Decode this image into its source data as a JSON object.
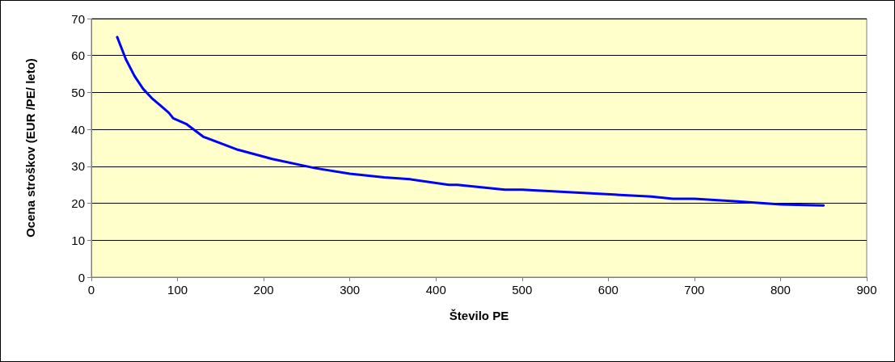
{
  "chart_data": {
    "type": "line",
    "xlabel": "Število PE",
    "ylabel": "Ocena stroškov (EUR /PE/ leto)",
    "x": [
      30,
      40,
      50,
      60,
      70,
      80,
      90,
      95,
      110,
      130,
      170,
      210,
      260,
      300,
      340,
      370,
      415,
      425,
      480,
      500,
      650,
      675,
      700,
      750,
      800,
      850
    ],
    "series": [
      {
        "color": "#0000ff",
        "values": [
          65,
          59,
          54.5,
          51,
          48.5,
          46.5,
          44.5,
          43,
          41.5,
          38,
          34.5,
          32,
          29.5,
          28,
          27,
          26.5,
          25,
          25,
          23.7,
          23.7,
          21.8,
          21.2,
          21.2,
          20.5,
          19.7,
          19.4
        ]
      }
    ],
    "xlim": [
      0,
      900
    ],
    "xticks": [
      0,
      100,
      200,
      300,
      400,
      500,
      600,
      700,
      800,
      900
    ],
    "ylim": [
      0,
      70
    ],
    "yticks": [
      0,
      10,
      20,
      30,
      40,
      50,
      60,
      70
    ],
    "grid": "y",
    "marker": "none",
    "line_style": "solid"
  }
}
